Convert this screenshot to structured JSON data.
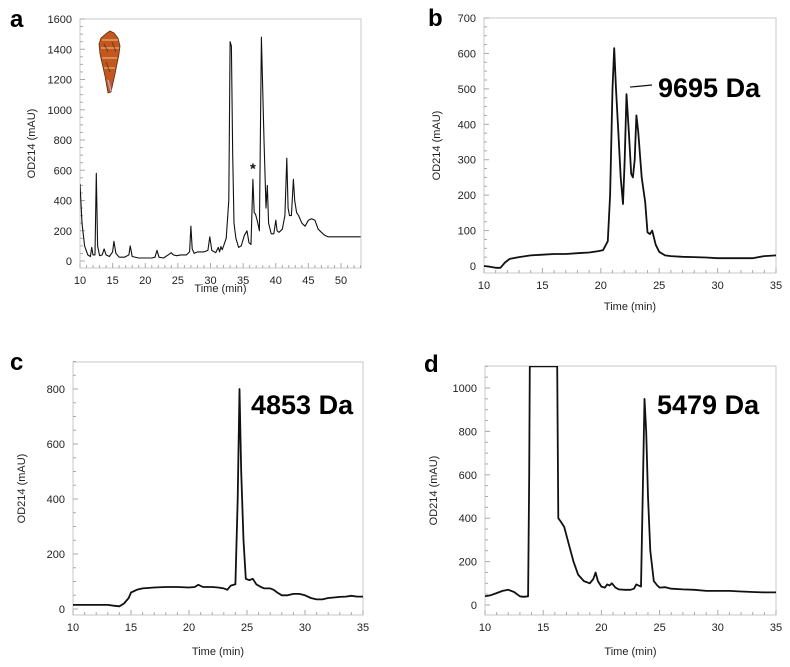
{
  "chart_data": [
    {
      "panel": "a",
      "type": "line",
      "title": "",
      "xlabel": "Time (min)",
      "ylabel": "OD214 (mAU)",
      "xlim": [
        10,
        53
      ],
      "ylim": [
        0,
        1600
      ],
      "xticks": [
        10,
        15,
        20,
        25,
        30,
        35,
        40,
        45,
        50
      ],
      "yticks": [
        0,
        200,
        400,
        600,
        800,
        1000,
        1200,
        1400,
        1600
      ],
      "annotations": [
        {
          "text": "*",
          "x": 36.5,
          "y": 580
        }
      ],
      "inset_image": "cone-snail-shell",
      "series": [
        {
          "name": "chromatogram",
          "x": [
            10,
            10.3,
            10.7,
            11.2,
            11.6,
            11.8,
            12.0,
            12.3,
            12.5,
            12.7,
            13.0,
            13.4,
            13.7,
            14.0,
            14.5,
            15.0,
            15.2,
            15.5,
            16.0,
            16.8,
            17.5,
            17.7,
            18.0,
            19.0,
            20.0,
            21.0,
            21.5,
            21.8,
            22.1,
            22.8,
            23.5,
            24.0,
            24.3,
            24.8,
            25.5,
            26.3,
            26.8,
            27.0,
            27.2,
            27.5,
            28.0,
            29.0,
            29.6,
            29.9,
            30.2,
            30.8,
            31.2,
            31.4,
            31.6,
            31.8,
            32.0,
            32.4,
            32.8,
            33.0,
            33.2,
            33.4,
            33.6,
            33.9,
            34.3,
            34.7,
            35.2,
            35.6,
            35.9,
            36.2,
            36.5,
            36.7,
            36.9,
            37.2,
            37.5,
            37.8,
            38.2,
            38.5,
            38.7,
            38.9,
            39.3,
            39.7,
            40.0,
            40.2,
            40.5,
            41.0,
            41.4,
            41.7,
            41.9,
            42.1,
            42.4,
            42.7,
            42.9,
            43.2,
            43.5,
            44.0,
            44.5,
            45.0,
            45.5,
            46.0,
            46.5,
            47.0,
            47.5,
            48.0,
            49.0,
            50.0,
            51.0,
            52.0,
            53.0
          ],
          "y": [
            510,
            250,
            100,
            40,
            30,
            90,
            40,
            40,
            580,
            100,
            35,
            40,
            80,
            40,
            30,
            60,
            130,
            50,
            25,
            25,
            40,
            100,
            30,
            20,
            20,
            20,
            25,
            70,
            25,
            20,
            40,
            55,
            40,
            35,
            40,
            40,
            60,
            230,
            80,
            50,
            60,
            60,
            70,
            160,
            70,
            55,
            90,
            60,
            95,
            75,
            100,
            150,
            400,
            1450,
            1420,
            700,
            250,
            150,
            90,
            100,
            170,
            200,
            120,
            110,
            540,
            320,
            310,
            260,
            200,
            1480,
            800,
            350,
            500,
            250,
            180,
            180,
            270,
            200,
            190,
            210,
            300,
            680,
            350,
            300,
            300,
            540,
            400,
            320,
            300,
            250,
            230,
            270,
            280,
            270,
            210,
            190,
            170,
            160,
            160,
            160,
            160,
            160,
            160
          ]
        }
      ]
    },
    {
      "panel": "b",
      "type": "line",
      "title": "",
      "xlabel": "Time (min)",
      "ylabel": "OD214 (mAU)",
      "xlim": [
        10,
        35
      ],
      "ylim": [
        -20,
        700
      ],
      "xticks": [
        10,
        15,
        20,
        25,
        30,
        35
      ],
      "yticks": [
        0,
        100,
        200,
        300,
        400,
        500,
        600,
        700
      ],
      "annotations": [
        {
          "text": "9695 Da",
          "arrow_to_x": 22.5,
          "arrow_to_y": 505
        }
      ],
      "series": [
        {
          "name": "chromatogram",
          "x": [
            10,
            10.5,
            11.0,
            11.4,
            11.8,
            12.2,
            13.0,
            14.0,
            15.0,
            16.0,
            17.0,
            18.0,
            19.0,
            19.8,
            20.2,
            20.6,
            20.8,
            21.0,
            21.15,
            21.3,
            21.5,
            21.7,
            21.9,
            22.05,
            22.2,
            22.4,
            22.6,
            22.75,
            22.9,
            23.05,
            23.2,
            23.5,
            23.8,
            24.0,
            24.2,
            24.4,
            24.7,
            25.0,
            25.5,
            26.0,
            27.0,
            28.0,
            29.0,
            30.0,
            31.0,
            32.0,
            33.0,
            33.5,
            34.0,
            35.0
          ],
          "y": [
            0,
            -2,
            -5,
            -5,
            10,
            20,
            25,
            30,
            32,
            34,
            34,
            36,
            38,
            42,
            45,
            70,
            200,
            500,
            615,
            500,
            380,
            250,
            175,
            300,
            485,
            380,
            260,
            250,
            300,
            425,
            380,
            250,
            180,
            95,
            90,
            100,
            60,
            40,
            30,
            28,
            26,
            25,
            24,
            22,
            22,
            22,
            22,
            25,
            28,
            30
          ]
        }
      ]
    },
    {
      "panel": "c",
      "type": "line",
      "title": "",
      "xlabel": "Time (min)",
      "ylabel": "OD214 (mAU)",
      "xlim": [
        10,
        35
      ],
      "ylim": [
        -20,
        900
      ],
      "xticks": [
        10,
        15,
        20,
        25,
        30,
        35
      ],
      "yticks": [
        0,
        200,
        400,
        600,
        800
      ],
      "annotations": [
        {
          "text": "4853 Da"
        }
      ],
      "series": [
        {
          "name": "chromatogram",
          "x": [
            10,
            11,
            12,
            13,
            13.5,
            14,
            14.4,
            14.8,
            15.0,
            15.5,
            16,
            17,
            18,
            19,
            20,
            20.5,
            20.8,
            21.2,
            22,
            22.5,
            23,
            23.3,
            23.6,
            24.0,
            24.2,
            24.35,
            24.5,
            24.7,
            24.9,
            25.2,
            25.5,
            25.8,
            26.2,
            26.5,
            27,
            27.3,
            27.6,
            28,
            28.5,
            29,
            29.5,
            30,
            30.5,
            31,
            31.5,
            32,
            32.5,
            33,
            33.5,
            34,
            34.5,
            35
          ],
          "y": [
            15,
            15,
            15,
            15,
            12,
            10,
            20,
            40,
            60,
            70,
            75,
            78,
            80,
            80,
            78,
            80,
            88,
            80,
            80,
            78,
            75,
            70,
            85,
            90,
            400,
            800,
            500,
            250,
            110,
            105,
            110,
            90,
            80,
            75,
            75,
            70,
            60,
            50,
            50,
            55,
            55,
            50,
            40,
            35,
            35,
            40,
            42,
            44,
            45,
            48,
            45,
            45
          ]
        }
      ]
    },
    {
      "panel": "d",
      "type": "line",
      "title": "",
      "xlabel": "Time (min)",
      "ylabel": "OD214 (mAU)",
      "xlim": [
        10,
        35
      ],
      "ylim": [
        -50,
        1100
      ],
      "xticks": [
        10,
        15,
        20,
        25,
        30,
        35
      ],
      "yticks": [
        0,
        200,
        400,
        600,
        800,
        1000
      ],
      "annotations": [
        {
          "text": "5479 Da"
        }
      ],
      "series": [
        {
          "name": "chromatogram",
          "x": [
            10,
            10.5,
            11,
            11.5,
            12,
            12.5,
            13,
            13.3,
            13.7,
            13.8,
            13.85,
            16.2,
            16.3,
            16.5,
            16.8,
            17.2,
            17.6,
            18,
            18.5,
            19,
            19.3,
            19.5,
            19.7,
            20,
            20.3,
            20.5,
            20.7,
            20.9,
            21.2,
            21.5,
            22,
            22.5,
            22.8,
            23.0,
            23.2,
            23.4,
            23.55,
            23.7,
            23.85,
            24.0,
            24.2,
            24.5,
            24.8,
            25.0,
            25.5,
            26,
            27,
            28,
            29,
            30,
            31,
            32,
            33,
            34,
            35
          ],
          "y": [
            40,
            45,
            55,
            65,
            70,
            60,
            40,
            38,
            40,
            600,
            1100,
            1100,
            400,
            385,
            360,
            280,
            200,
            140,
            110,
            100,
            120,
            150,
            110,
            85,
            80,
            95,
            90,
            100,
            80,
            72,
            70,
            70,
            75,
            95,
            90,
            85,
            500,
            950,
            800,
            500,
            250,
            110,
            90,
            80,
            82,
            75,
            72,
            70,
            65,
            65,
            65,
            62,
            60,
            58,
            58
          ]
        }
      ]
    }
  ]
}
